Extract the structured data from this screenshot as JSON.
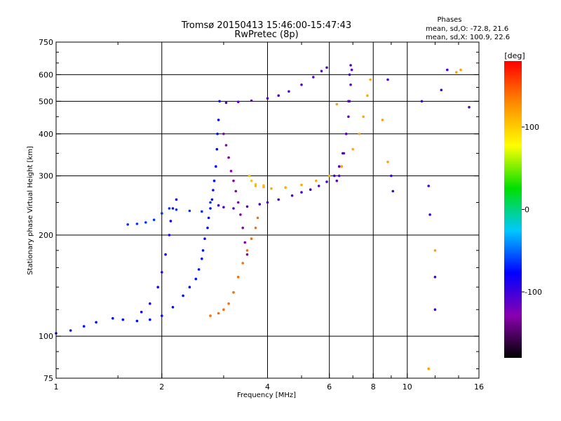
{
  "chart_data": {
    "type": "scatter",
    "title": "Tromsø 20150413 15:46:00-15:47:43",
    "subtitle": "RwPretec (8p)",
    "xlabel": "Frequency [MHz]",
    "ylabel": "Stationary phase Virtual Height [km]",
    "x_scale": "log",
    "y_scale": "log",
    "xlim": [
      1,
      16
    ],
    "ylim": [
      75,
      750
    ],
    "x_ticks": [
      1,
      2,
      4,
      6,
      8,
      10,
      16
    ],
    "x_tick_labels": [
      "1",
      "2",
      "4",
      "6",
      "8",
      "10",
      "16"
    ],
    "x_minor_ticks": [
      1.5,
      3,
      5,
      7,
      9,
      12,
      14
    ],
    "y_ticks": [
      75,
      100,
      200,
      300,
      400,
      500,
      600,
      750
    ],
    "y_tick_labels": [
      "75",
      "100",
      "200",
      "300",
      "400",
      "500",
      "600",
      "750"
    ],
    "y_minor_ticks": [
      80,
      90,
      120,
      140,
      160,
      180,
      250,
      350,
      450,
      550,
      650,
      700
    ],
    "grid": true,
    "stats": {
      "heading": "Phases",
      "line1": "mean, sd,O: -72.8, 21.6",
      "line2": "mean, sd,X: 100.9, 22.6"
    },
    "colorbar": {
      "label": "[deg]",
      "range": [
        -180,
        180
      ],
      "ticks": [
        100,
        0,
        -100
      ],
      "tick_labels": [
        "100",
        "0",
        "-100"
      ],
      "colors": [
        "#000000",
        "#8a00b0",
        "#0000ff",
        "#00c8ff",
        "#00e000",
        "#ffff00",
        "#ff8c00",
        "#ff0000"
      ]
    },
    "series": [
      {
        "phase": -75,
        "points": [
          [
            1.0,
            102
          ],
          [
            1.1,
            104
          ],
          [
            1.2,
            107
          ],
          [
            1.3,
            110
          ],
          [
            1.45,
            113
          ],
          [
            1.55,
            112
          ],
          [
            1.7,
            111
          ],
          [
            1.85,
            112
          ],
          [
            2.0,
            115
          ],
          [
            2.15,
            122
          ],
          [
            2.3,
            132
          ],
          [
            2.4,
            140
          ],
          [
            2.5,
            148
          ],
          [
            2.55,
            158
          ],
          [
            2.6,
            170
          ],
          [
            2.62,
            180
          ],
          [
            2.65,
            195
          ],
          [
            2.7,
            210
          ],
          [
            2.72,
            225
          ],
          [
            2.75,
            240
          ],
          [
            2.78,
            255
          ],
          [
            2.8,
            272
          ],
          [
            2.82,
            290
          ],
          [
            2.85,
            320
          ],
          [
            2.87,
            360
          ],
          [
            2.88,
            400
          ],
          [
            2.9,
            440
          ],
          [
            2.92,
            500
          ]
        ]
      },
      {
        "phase": -65,
        "points": [
          [
            1.6,
            215
          ],
          [
            1.7,
            216
          ],
          [
            1.8,
            218
          ],
          [
            1.9,
            222
          ],
          [
            2.0,
            232
          ],
          [
            2.1,
            240
          ],
          [
            2.2,
            238
          ],
          [
            2.4,
            236
          ],
          [
            2.6,
            235
          ],
          [
            2.75,
            250
          ]
        ]
      },
      {
        "phase": -85,
        "points": [
          [
            1.75,
            118
          ],
          [
            1.85,
            125
          ],
          [
            1.95,
            140
          ],
          [
            2.0,
            155
          ],
          [
            2.05,
            175
          ],
          [
            2.1,
            200
          ],
          [
            2.12,
            220
          ],
          [
            2.15,
            240
          ],
          [
            2.2,
            255
          ]
        ]
      },
      {
        "phase": -105,
        "points": [
          [
            2.9,
            245
          ],
          [
            3.0,
            242
          ],
          [
            3.2,
            240
          ],
          [
            3.5,
            243
          ],
          [
            3.8,
            247
          ],
          [
            4.0,
            250
          ],
          [
            4.3,
            255
          ],
          [
            4.7,
            262
          ],
          [
            5.0,
            268
          ],
          [
            5.3,
            273
          ],
          [
            5.6,
            280
          ],
          [
            5.9,
            288
          ],
          [
            6.2,
            300
          ],
          [
            6.4,
            320
          ],
          [
            6.55,
            350
          ],
          [
            6.7,
            400
          ],
          [
            6.8,
            500
          ],
          [
            6.85,
            600
          ],
          [
            6.9,
            640
          ]
        ]
      },
      {
        "phase": -110,
        "points": [
          [
            3.05,
            495
          ],
          [
            3.3,
            498
          ],
          [
            3.6,
            502
          ],
          [
            4.0,
            510
          ],
          [
            4.3,
            520
          ],
          [
            4.6,
            535
          ],
          [
            5.0,
            560
          ],
          [
            5.4,
            590
          ],
          [
            5.7,
            615
          ],
          [
            5.9,
            630
          ]
        ]
      },
      {
        "phase": -130,
        "points": [
          [
            3.0,
            400
          ],
          [
            3.05,
            370
          ],
          [
            3.1,
            340
          ],
          [
            3.15,
            310
          ],
          [
            3.2,
            290
          ],
          [
            3.25,
            270
          ],
          [
            3.3,
            250
          ],
          [
            3.35,
            230
          ],
          [
            3.4,
            210
          ],
          [
            3.45,
            190
          ],
          [
            3.5,
            175
          ]
        ]
      },
      {
        "phase": -115,
        "points": [
          [
            6.3,
            290
          ],
          [
            6.4,
            300
          ],
          [
            6.5,
            320
          ],
          [
            6.6,
            350
          ],
          [
            6.7,
            400
          ],
          [
            6.8,
            450
          ],
          [
            6.85,
            500
          ],
          [
            6.9,
            560
          ],
          [
            6.95,
            620
          ]
        ]
      },
      {
        "phase": 115,
        "points": [
          [
            3.7,
            280
          ],
          [
            3.9,
            278
          ],
          [
            4.1,
            275
          ],
          [
            4.5,
            277
          ],
          [
            5.0,
            282
          ],
          [
            5.5,
            290
          ],
          [
            6.0,
            300
          ],
          [
            6.5,
            320
          ],
          [
            7.0,
            360
          ],
          [
            7.3,
            400
          ],
          [
            7.5,
            450
          ],
          [
            7.7,
            520
          ],
          [
            7.85,
            580
          ]
        ]
      },
      {
        "phase": 105,
        "points": [
          [
            3.55,
            300
          ],
          [
            3.6,
            290
          ],
          [
            3.7,
            283
          ],
          [
            3.9,
            281
          ]
        ]
      },
      {
        "phase": 140,
        "points": [
          [
            2.75,
            115
          ],
          [
            2.9,
            117
          ],
          [
            3.0,
            120
          ],
          [
            3.1,
            125
          ],
          [
            3.2,
            135
          ],
          [
            3.3,
            150
          ],
          [
            3.4,
            165
          ],
          [
            3.5,
            180
          ],
          [
            3.6,
            195
          ],
          [
            3.7,
            210
          ],
          [
            3.75,
            225
          ]
        ]
      },
      {
        "phase": -100,
        "points": [
          [
            8.8,
            580
          ],
          [
            9.0,
            300
          ],
          [
            9.1,
            270
          ],
          [
            11.0,
            500
          ],
          [
            12.0,
            150
          ],
          [
            12.0,
            120
          ],
          [
            12.5,
            540
          ],
          [
            13.0,
            620
          ],
          [
            15.0,
            480
          ],
          [
            11.5,
            280
          ],
          [
            11.6,
            230
          ]
        ]
      },
      {
        "phase": 120,
        "points": [
          [
            8.5,
            440
          ],
          [
            8.8,
            330
          ],
          [
            11.5,
            80
          ],
          [
            12.0,
            180
          ],
          [
            14.2,
            620
          ],
          [
            13.8,
            610
          ],
          [
            6.3,
            490
          ]
        ]
      }
    ]
  }
}
